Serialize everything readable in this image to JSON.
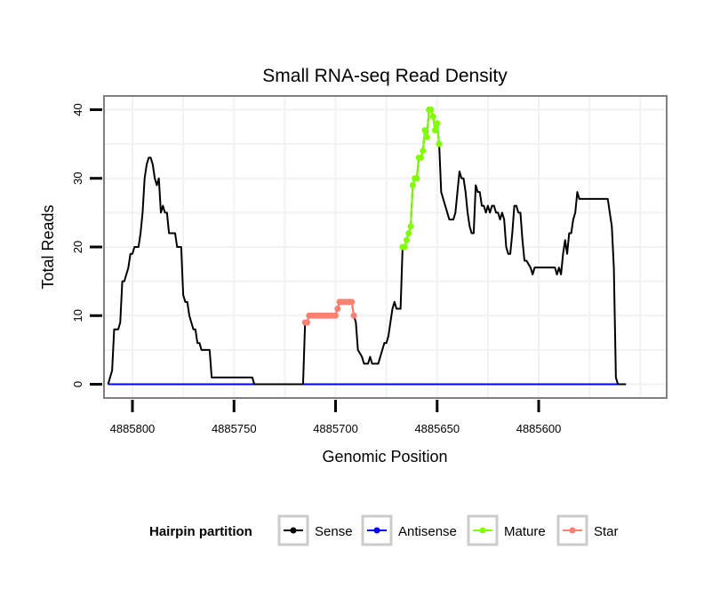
{
  "chart_data": {
    "type": "line",
    "title": "Small RNA-seq Read Density",
    "xlabel": "Genomic Position",
    "ylabel": "Total Reads",
    "x_reversed": true,
    "xlim": [
      4885814,
      4885537
    ],
    "ylim": [
      -2,
      42
    ],
    "x_ticks": [
      4885800,
      4885750,
      4885700,
      4885650,
      4885600
    ],
    "x_tick_labels": [
      "4885800",
      "4885750",
      "4885700",
      "4885650",
      "4885600"
    ],
    "y_ticks": [
      0,
      10,
      20,
      30,
      40
    ],
    "y_tick_labels": [
      "0",
      "10",
      "20",
      "30",
      "40"
    ],
    "grid": true,
    "legend": {
      "title": "Hairpin partition",
      "position": "bottom",
      "entries": [
        {
          "label": "Sense",
          "color": "#000000"
        },
        {
          "label": "Antisense",
          "color": "#0000ff"
        },
        {
          "label": "Mature",
          "color": "#7fff00"
        },
        {
          "label": "Star",
          "color": "#fa8072"
        }
      ]
    },
    "series": [
      {
        "name": "Sense",
        "color": "#000000",
        "markers": false,
        "points": [
          [
            4885812,
            0
          ],
          [
            4885810,
            2
          ],
          [
            4885809,
            8
          ],
          [
            4885807,
            8
          ],
          [
            4885806,
            9
          ],
          [
            4885805,
            15
          ],
          [
            4885804,
            15
          ],
          [
            4885802,
            17
          ],
          [
            4885801,
            19
          ],
          [
            4885800,
            19
          ],
          [
            4885799,
            20
          ],
          [
            4885797,
            20
          ],
          [
            4885796,
            22
          ],
          [
            4885795,
            25
          ],
          [
            4885794,
            30
          ],
          [
            4885793,
            32
          ],
          [
            4885792,
            33
          ],
          [
            4885791,
            33
          ],
          [
            4885790,
            32
          ],
          [
            4885789,
            30
          ],
          [
            4885788,
            29
          ],
          [
            4885787,
            30
          ],
          [
            4885786,
            25
          ],
          [
            4885785,
            26
          ],
          [
            4885784,
            25
          ],
          [
            4885783,
            25
          ],
          [
            4885782,
            22
          ],
          [
            4885779,
            22
          ],
          [
            4885778,
            20
          ],
          [
            4885776,
            20
          ],
          [
            4885775,
            13
          ],
          [
            4885774,
            12
          ],
          [
            4885773,
            12
          ],
          [
            4885772,
            10
          ],
          [
            4885771,
            9
          ],
          [
            4885770,
            8
          ],
          [
            4885769,
            8
          ],
          [
            4885768,
            6
          ],
          [
            4885767,
            6
          ],
          [
            4885766,
            5
          ],
          [
            4885762,
            5
          ],
          [
            4885761,
            1
          ],
          [
            4885741,
            1
          ],
          [
            4885740,
            0
          ],
          [
            4885716,
            0
          ],
          [
            4885715,
            9
          ],
          [
            4885714,
            9
          ],
          [
            4885713,
            10
          ],
          [
            4885700,
            10
          ],
          [
            4885699,
            11
          ],
          [
            4885698,
            12
          ],
          [
            4885692,
            12
          ],
          [
            4885691,
            10
          ],
          [
            4885690,
            9
          ],
          [
            4885689,
            5
          ],
          [
            4885687,
            4
          ],
          [
            4885686,
            3
          ],
          [
            4885684,
            3
          ],
          [
            4885683,
            4
          ],
          [
            4885682,
            3
          ],
          [
            4885679,
            3
          ],
          [
            4885677,
            5
          ],
          [
            4885676,
            6
          ],
          [
            4885675,
            6
          ],
          [
            4885674,
            7
          ],
          [
            4885672,
            11
          ],
          [
            4885671,
            12
          ],
          [
            4885670,
            11
          ],
          [
            4885668,
            11
          ],
          [
            4885667,
            20
          ],
          [
            4885666,
            20
          ],
          [
            4885665,
            21
          ],
          [
            4885664,
            22
          ],
          [
            4885663,
            23
          ],
          [
            4885662,
            29
          ],
          [
            4885661,
            30
          ],
          [
            4885660,
            30
          ],
          [
            4885659,
            33
          ],
          [
            4885658,
            33
          ],
          [
            4885657,
            34
          ],
          [
            4885656,
            37
          ],
          [
            4885655,
            36
          ],
          [
            4885654,
            40
          ],
          [
            4885653,
            40
          ],
          [
            4885652,
            39
          ],
          [
            4885651,
            37
          ],
          [
            4885650,
            38
          ],
          [
            4885649,
            35
          ],
          [
            4885648,
            28
          ],
          [
            4885646,
            26
          ],
          [
            4885644,
            24
          ],
          [
            4885642,
            24
          ],
          [
            4885641,
            25
          ],
          [
            4885640,
            28
          ],
          [
            4885639,
            31
          ],
          [
            4885638,
            30
          ],
          [
            4885637,
            30
          ],
          [
            4885636,
            28
          ],
          [
            4885635,
            25
          ],
          [
            4885634,
            23
          ],
          [
            4885633,
            22
          ],
          [
            4885632,
            22
          ],
          [
            4885631,
            29
          ],
          [
            4885630,
            28
          ],
          [
            4885629,
            28
          ],
          [
            4885628,
            26
          ],
          [
            4885627,
            26
          ],
          [
            4885626,
            25
          ],
          [
            4885625,
            26
          ],
          [
            4885624,
            25
          ],
          [
            4885623,
            26
          ],
          [
            4885622,
            26
          ],
          [
            4885621,
            25
          ],
          [
            4885620,
            25
          ],
          [
            4885619,
            24
          ],
          [
            4885618,
            25
          ],
          [
            4885617,
            24
          ],
          [
            4885616,
            20
          ],
          [
            4885615,
            19
          ],
          [
            4885614,
            19
          ],
          [
            4885613,
            22
          ],
          [
            4885612,
            26
          ],
          [
            4885611,
            26
          ],
          [
            4885610,
            25
          ],
          [
            4885609,
            25
          ],
          [
            4885608,
            21
          ],
          [
            4885607,
            18
          ],
          [
            4885606,
            18
          ],
          [
            4885604,
            17
          ],
          [
            4885603,
            16
          ],
          [
            4885602,
            17
          ],
          [
            4885592,
            17
          ],
          [
            4885591,
            16
          ],
          [
            4885590,
            17
          ],
          [
            4885589,
            16
          ],
          [
            4885588,
            19
          ],
          [
            4885587,
            21
          ],
          [
            4885586,
            19
          ],
          [
            4885585,
            22
          ],
          [
            4885584,
            22
          ],
          [
            4885583,
            24
          ],
          [
            4885582,
            25
          ],
          [
            4885581,
            28
          ],
          [
            4885580,
            27
          ],
          [
            4885566,
            27
          ],
          [
            4885565,
            25
          ],
          [
            4885564,
            23
          ],
          [
            4885563,
            17
          ],
          [
            4885562,
            1
          ],
          [
            4885561,
            0
          ],
          [
            4885557,
            0
          ]
        ]
      },
      {
        "name": "Antisense",
        "color": "#0000ff",
        "markers": false,
        "points": [
          [
            4885812,
            0
          ],
          [
            4885561,
            0
          ]
        ]
      },
      {
        "name": "Mature",
        "color": "#7fff00",
        "markers": true,
        "points": [
          [
            4885667,
            20
          ],
          [
            4885666,
            20
          ],
          [
            4885665,
            21
          ],
          [
            4885664,
            22
          ],
          [
            4885663,
            23
          ],
          [
            4885662,
            29
          ],
          [
            4885661,
            30
          ],
          [
            4885660,
            30
          ],
          [
            4885659,
            33
          ],
          [
            4885658,
            33
          ],
          [
            4885657,
            34
          ],
          [
            4885656,
            37
          ],
          [
            4885655,
            36
          ],
          [
            4885654,
            40
          ],
          [
            4885653,
            40
          ],
          [
            4885652,
            39
          ],
          [
            4885651,
            37
          ],
          [
            4885650,
            38
          ],
          [
            4885649,
            35
          ]
        ]
      },
      {
        "name": "Star",
        "color": "#fa8072",
        "markers": true,
        "points": [
          [
            4885715,
            9
          ],
          [
            4885714,
            9
          ],
          [
            4885713,
            10
          ],
          [
            4885712,
            10
          ],
          [
            4885711,
            10
          ],
          [
            4885710,
            10
          ],
          [
            4885709,
            10
          ],
          [
            4885708,
            10
          ],
          [
            4885707,
            10
          ],
          [
            4885706,
            10
          ],
          [
            4885705,
            10
          ],
          [
            4885704,
            10
          ],
          [
            4885703,
            10
          ],
          [
            4885702,
            10
          ],
          [
            4885701,
            10
          ],
          [
            4885700,
            10
          ],
          [
            4885699,
            11
          ],
          [
            4885698,
            12
          ],
          [
            4885697,
            12
          ],
          [
            4885696,
            12
          ],
          [
            4885695,
            12
          ],
          [
            4885694,
            12
          ],
          [
            4885693,
            12
          ],
          [
            4885692,
            12
          ],
          [
            4885691,
            10
          ]
        ]
      }
    ]
  }
}
